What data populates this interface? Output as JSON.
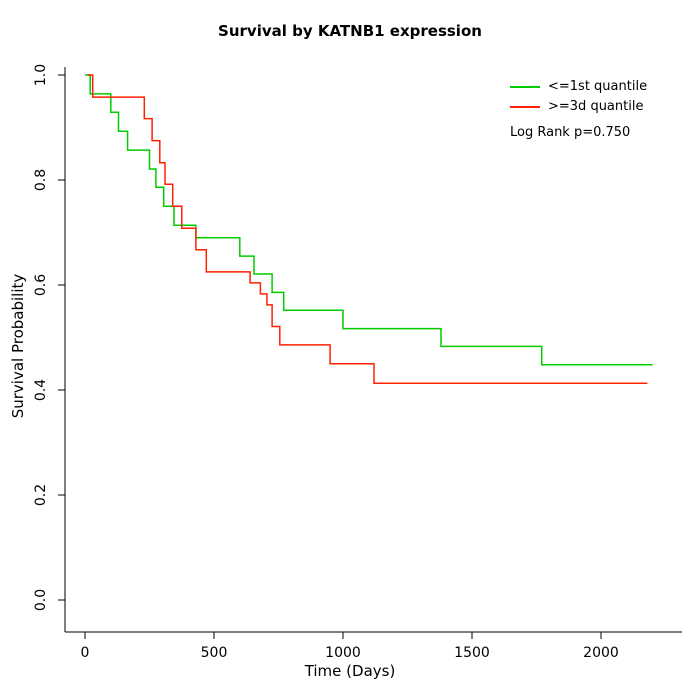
{
  "title": "Survival by KATNB1 expression",
  "xlabel": "Time (Days)",
  "ylabel": "Survival Probability",
  "legend": {
    "entries": [
      {
        "label": "<=1st quantile",
        "color": "#00CC00"
      },
      {
        "label": ">=3d quantile",
        "color": "#FF2200"
      }
    ],
    "note": "Log Rank p=0.750"
  },
  "chart_data": {
    "type": "line",
    "subtype": "kaplan-meier-step",
    "title": "Survival by KATNB1 expression",
    "xlabel": "Time (Days)",
    "ylabel": "Survival Probability",
    "xlim": [
      0,
      2250
    ],
    "ylim": [
      0.0,
      1.0
    ],
    "x_ticks": [
      0,
      500,
      1000,
      1500,
      2000
    ],
    "x_tick_labels": [
      "0",
      "500",
      "1000",
      "1500",
      "2000"
    ],
    "y_ticks": [
      0.0,
      0.2,
      0.4,
      0.6,
      0.8,
      1.0
    ],
    "y_tick_labels": [
      "0.0",
      "0.2",
      "0.4",
      "0.6",
      "0.8",
      "1.0"
    ],
    "grid": false,
    "legend_position": "top-right",
    "log_rank_p": 0.75,
    "series": [
      {
        "name": "<=1st quantile",
        "color": "#00CC00",
        "points": [
          [
            0,
            1.0
          ],
          [
            20,
            0.964
          ],
          [
            100,
            0.929
          ],
          [
            130,
            0.893
          ],
          [
            165,
            0.857
          ],
          [
            250,
            0.821
          ],
          [
            275,
            0.786
          ],
          [
            305,
            0.75
          ],
          [
            345,
            0.714
          ],
          [
            430,
            0.69
          ],
          [
            600,
            0.655
          ],
          [
            655,
            0.621
          ],
          [
            725,
            0.586
          ],
          [
            770,
            0.552
          ],
          [
            1000,
            0.517
          ],
          [
            1380,
            0.483
          ],
          [
            1770,
            0.448
          ],
          [
            2200,
            0.448
          ]
        ]
      },
      {
        "name": ">=3d quantile",
        "color": "#FF2200",
        "points": [
          [
            10,
            1.0
          ],
          [
            30,
            0.958
          ],
          [
            230,
            0.917
          ],
          [
            260,
            0.875
          ],
          [
            290,
            0.833
          ],
          [
            310,
            0.792
          ],
          [
            340,
            0.75
          ],
          [
            375,
            0.708
          ],
          [
            430,
            0.667
          ],
          [
            470,
            0.625
          ],
          [
            640,
            0.604
          ],
          [
            680,
            0.583
          ],
          [
            705,
            0.562
          ],
          [
            725,
            0.521
          ],
          [
            755,
            0.486
          ],
          [
            950,
            0.45
          ],
          [
            1120,
            0.413
          ],
          [
            2180,
            0.413
          ]
        ]
      }
    ]
  }
}
